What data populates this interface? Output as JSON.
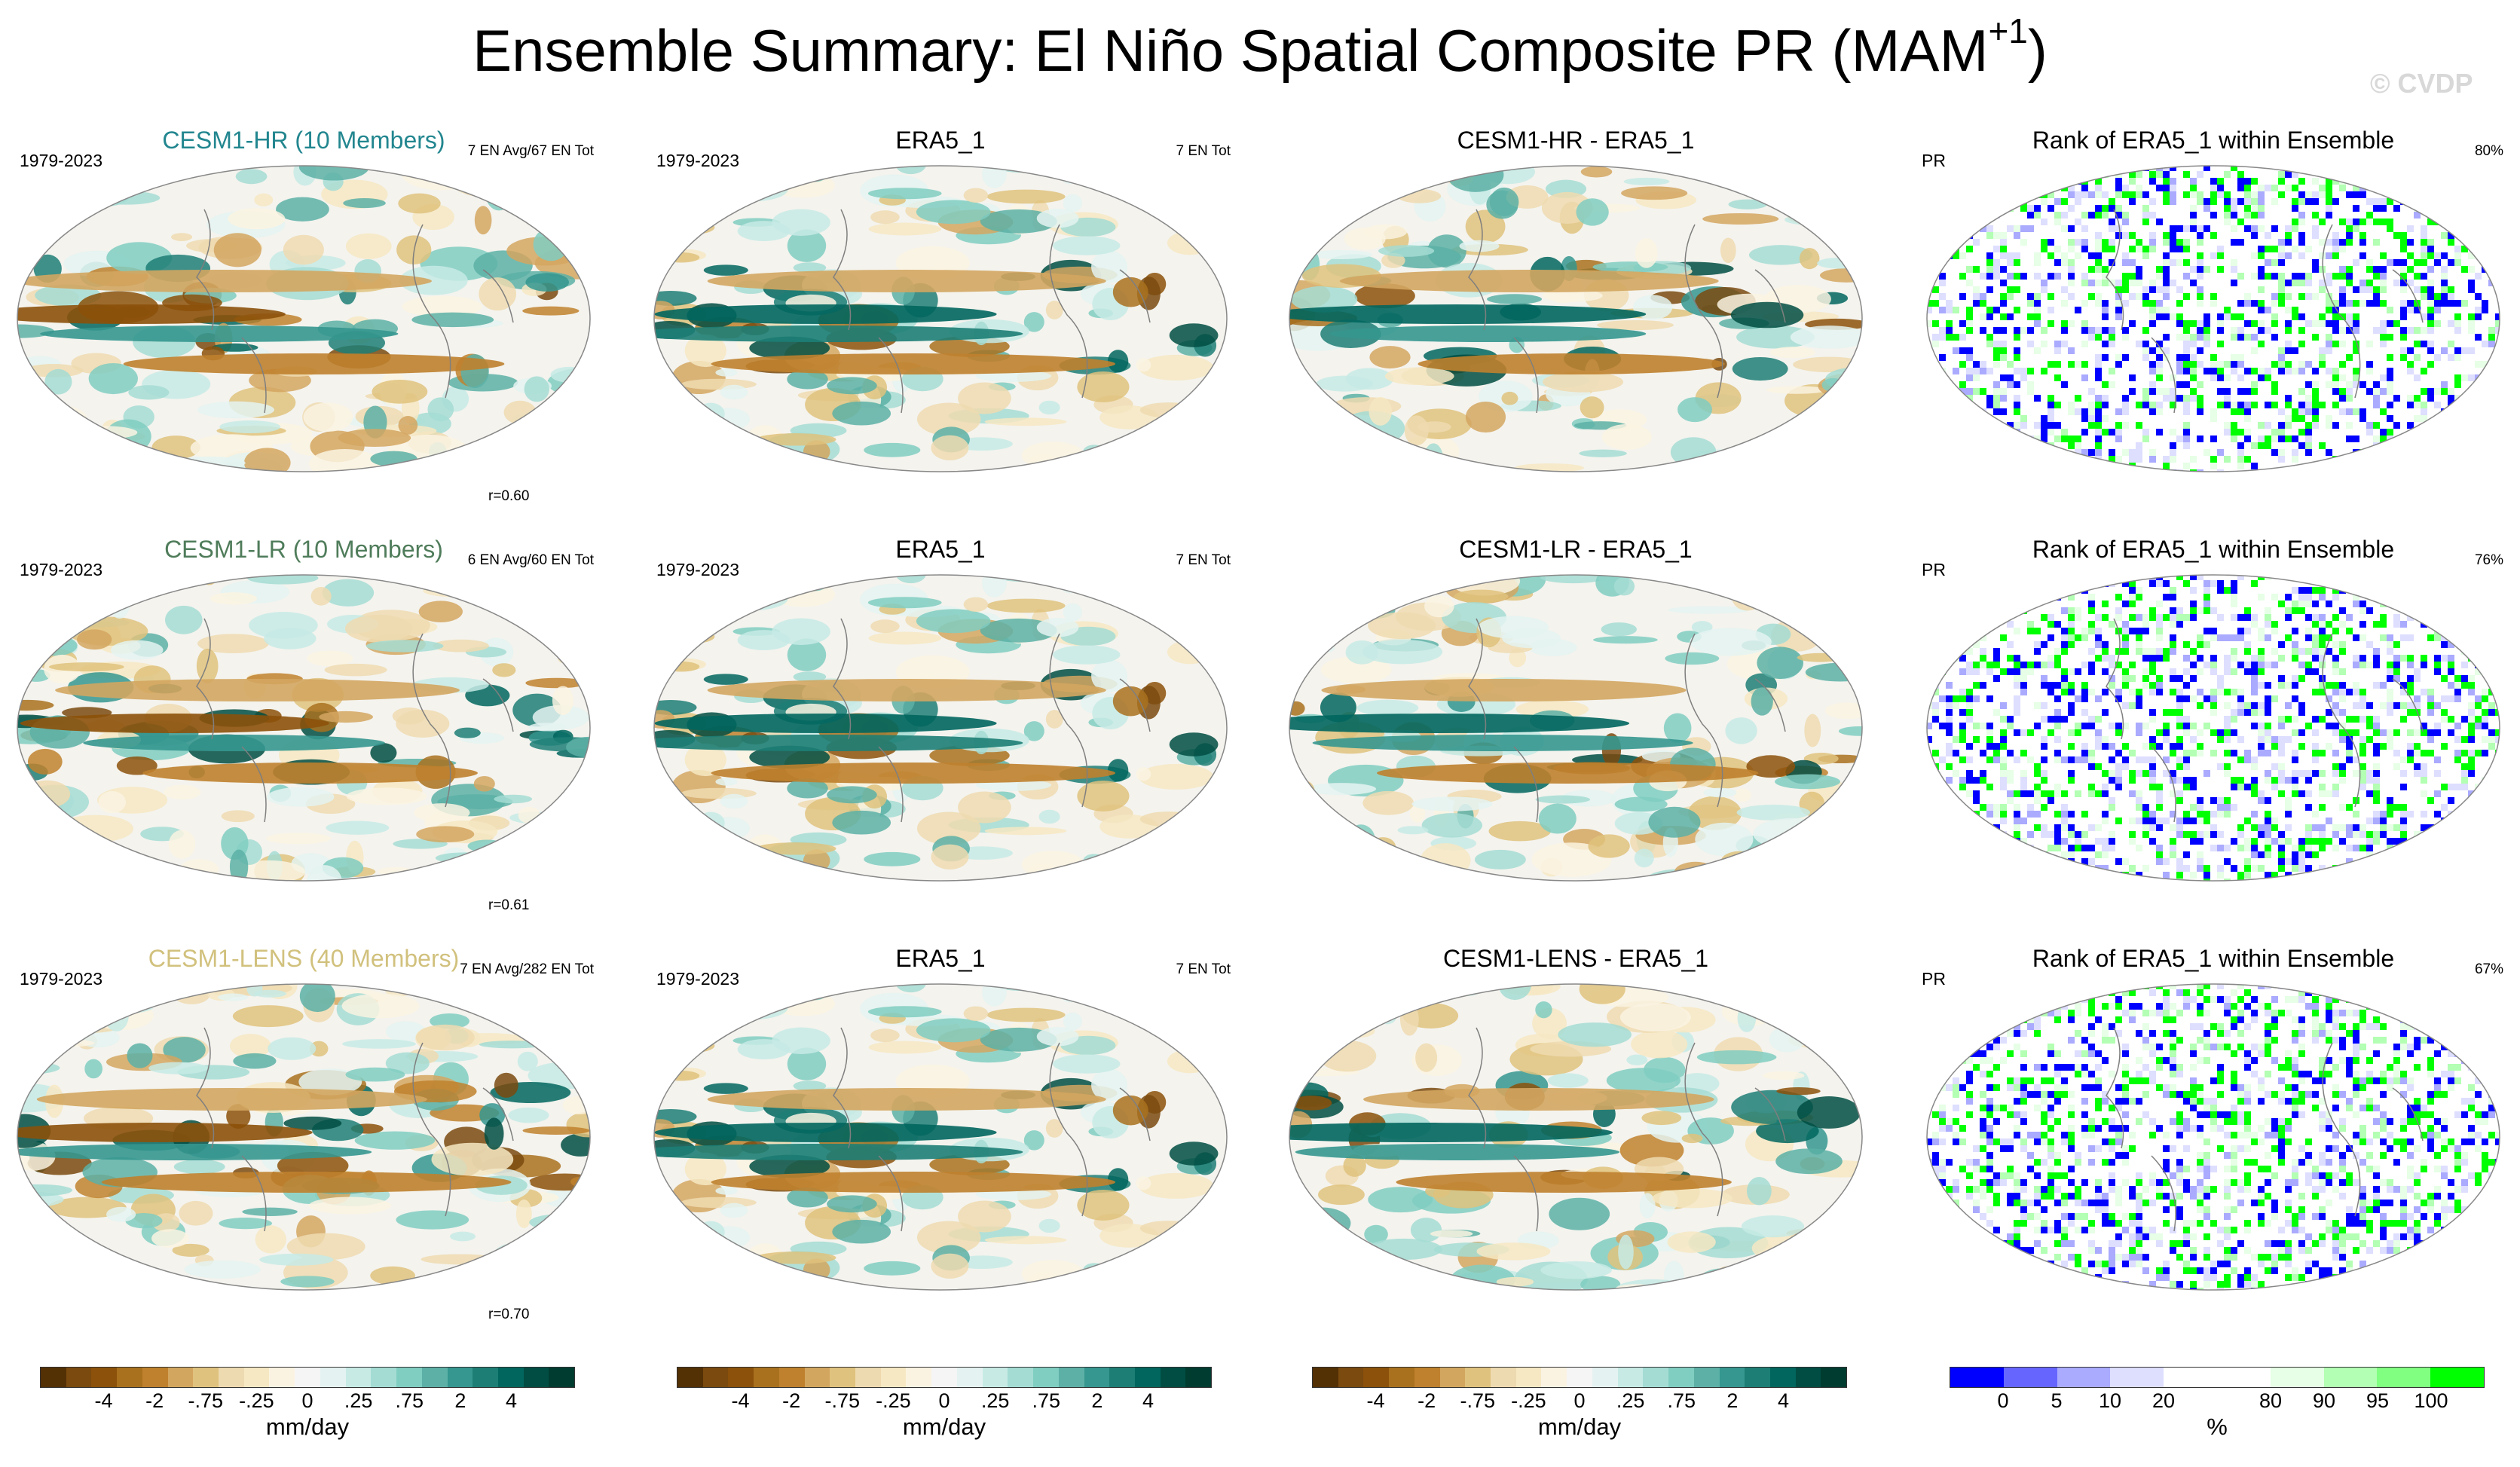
{
  "title": {
    "main": "Ensemble Summary: El Niño Spatial Composite PR (MAM",
    "sup": "+1",
    "close": ")"
  },
  "watermark": "© CVDP",
  "colors": {
    "brbg": [
      "#543005",
      "#7a4a0f",
      "#8c510a",
      "#a9711e",
      "#bf812d",
      "#d3a660",
      "#dfc27d",
      "#eedab0",
      "#f6e8c3",
      "#faf3e2",
      "#f5f5f5",
      "#e4f3f1",
      "#c7eae5",
      "#a4dcd4",
      "#80cdc1",
      "#5cb0a6",
      "#35978f",
      "#1d7e75",
      "#01665e",
      "#014d43",
      "#003c30"
    ],
    "rank": [
      "#0000ff",
      "#6666ff",
      "#aaaaff",
      "#dedeff",
      "#ffffff",
      "#ffffff",
      "#e6ffe6",
      "#b3ffb3",
      "#80ff80",
      "#00ff00"
    ],
    "land_tint": "#f5f3ea",
    "coast": "#7f7f7f"
  },
  "rows": [
    {
      "model": {
        "title": "CESM1-HR (10 Members)",
        "title_color": "#22868f",
        "period": "1979-2023",
        "count": "7 EN Avg/67 EN Tot",
        "r": "r=0.60"
      },
      "obs": {
        "title": "ERA5_1",
        "period": "1979-2023",
        "count": "7 EN Tot"
      },
      "diff": {
        "title": "CESM1-HR - ERA5_1"
      },
      "rank": {
        "title": "Rank of ERA5_1 within Ensemble",
        "label": "PR",
        "pct": "80%"
      }
    },
    {
      "model": {
        "title": "CESM1-LR (10 Members)",
        "title_color": "#4f7c5a",
        "period": "1979-2023",
        "count": "6 EN Avg/60 EN Tot",
        "r": "r=0.61"
      },
      "obs": {
        "title": "ERA5_1",
        "period": "1979-2023",
        "count": "7 EN Tot"
      },
      "diff": {
        "title": "CESM1-LR - ERA5_1"
      },
      "rank": {
        "title": "Rank of ERA5_1 within Ensemble",
        "label": "PR",
        "pct": "76%"
      }
    },
    {
      "model": {
        "title": "CESM1-LENS (40 Members)",
        "title_color": "#d1c17d",
        "period": "1979-2023",
        "count": "7 EN Avg/282 EN Tot",
        "r": "r=0.70"
      },
      "obs": {
        "title": "ERA5_1",
        "period": "1979-2023",
        "count": "7 EN Tot"
      },
      "diff": {
        "title": "CESM1-LENS - ERA5_1"
      },
      "rank": {
        "title": "Rank of ERA5_1 within Ensemble",
        "label": "PR",
        "pct": "67%"
      }
    }
  ],
  "colorbars": [
    {
      "ticks": [
        "-4",
        "-2",
        "-.75",
        "-.25",
        "0",
        ".25",
        ".75",
        "2",
        "4"
      ],
      "units": "mm/day"
    },
    {
      "ticks": [
        "-4",
        "-2",
        "-.75",
        "-.25",
        "0",
        ".25",
        ".75",
        "2",
        "4"
      ],
      "units": "mm/day"
    },
    {
      "ticks": [
        "-4",
        "-2",
        "-.75",
        "-.25",
        "0",
        ".25",
        ".75",
        "2",
        "4"
      ],
      "units": "mm/day"
    },
    {
      "ticks": [
        "0",
        "5",
        "10",
        "20",
        "80",
        "90",
        "95",
        "100"
      ],
      "units": "%"
    }
  ],
  "chart_data": {
    "type": "heatmap",
    "title": "Ensemble Summary: El Niño Spatial Composite PR (MAM+1)",
    "variable": "PR",
    "units": "mm/day",
    "contour_levels_mm_day": [
      -4,
      -3,
      -2,
      -1.5,
      -1,
      -0.75,
      -0.5,
      -0.25,
      -0.1,
      0,
      0.1,
      0.25,
      0.5,
      0.75,
      1,
      1.5,
      2,
      3,
      4
    ],
    "rank_levels_percent": [
      0,
      5,
      10,
      20,
      80,
      90,
      95,
      100
    ],
    "panels": [
      {
        "row": 1,
        "col": 1,
        "title": "CESM1-HR (10 Members)",
        "period": "1979-2023",
        "events": "7 EN Avg/67 EN Tot",
        "pattern_correlation": 0.6
      },
      {
        "row": 1,
        "col": 2,
        "title": "ERA5_1",
        "period": "1979-2023",
        "events": "7 EN Tot"
      },
      {
        "row": 1,
        "col": 3,
        "title": "CESM1-HR - ERA5_1"
      },
      {
        "row": 1,
        "col": 4,
        "title": "Rank of ERA5_1 within Ensemble",
        "percent_within_10_90": 80
      },
      {
        "row": 2,
        "col": 1,
        "title": "CESM1-LR (10 Members)",
        "period": "1979-2023",
        "events": "6 EN Avg/60 EN Tot",
        "pattern_correlation": 0.61
      },
      {
        "row": 2,
        "col": 2,
        "title": "ERA5_1",
        "period": "1979-2023",
        "events": "7 EN Tot"
      },
      {
        "row": 2,
        "col": 3,
        "title": "CESM1-LR - ERA5_1"
      },
      {
        "row": 2,
        "col": 4,
        "title": "Rank of ERA5_1 within Ensemble",
        "percent_within_10_90": 76
      },
      {
        "row": 3,
        "col": 1,
        "title": "CESM1-LENS (40 Members)",
        "period": "1979-2023",
        "events": "7 EN Avg/282 EN Tot",
        "pattern_correlation": 0.7
      },
      {
        "row": 3,
        "col": 2,
        "title": "ERA5_1",
        "period": "1979-2023",
        "events": "7 EN Tot"
      },
      {
        "row": 3,
        "col": 3,
        "title": "CESM1-LENS - ERA5_1"
      },
      {
        "row": 3,
        "col": 4,
        "title": "Rank of ERA5_1 within Ensemble",
        "percent_within_10_90": 67
      }
    ]
  }
}
